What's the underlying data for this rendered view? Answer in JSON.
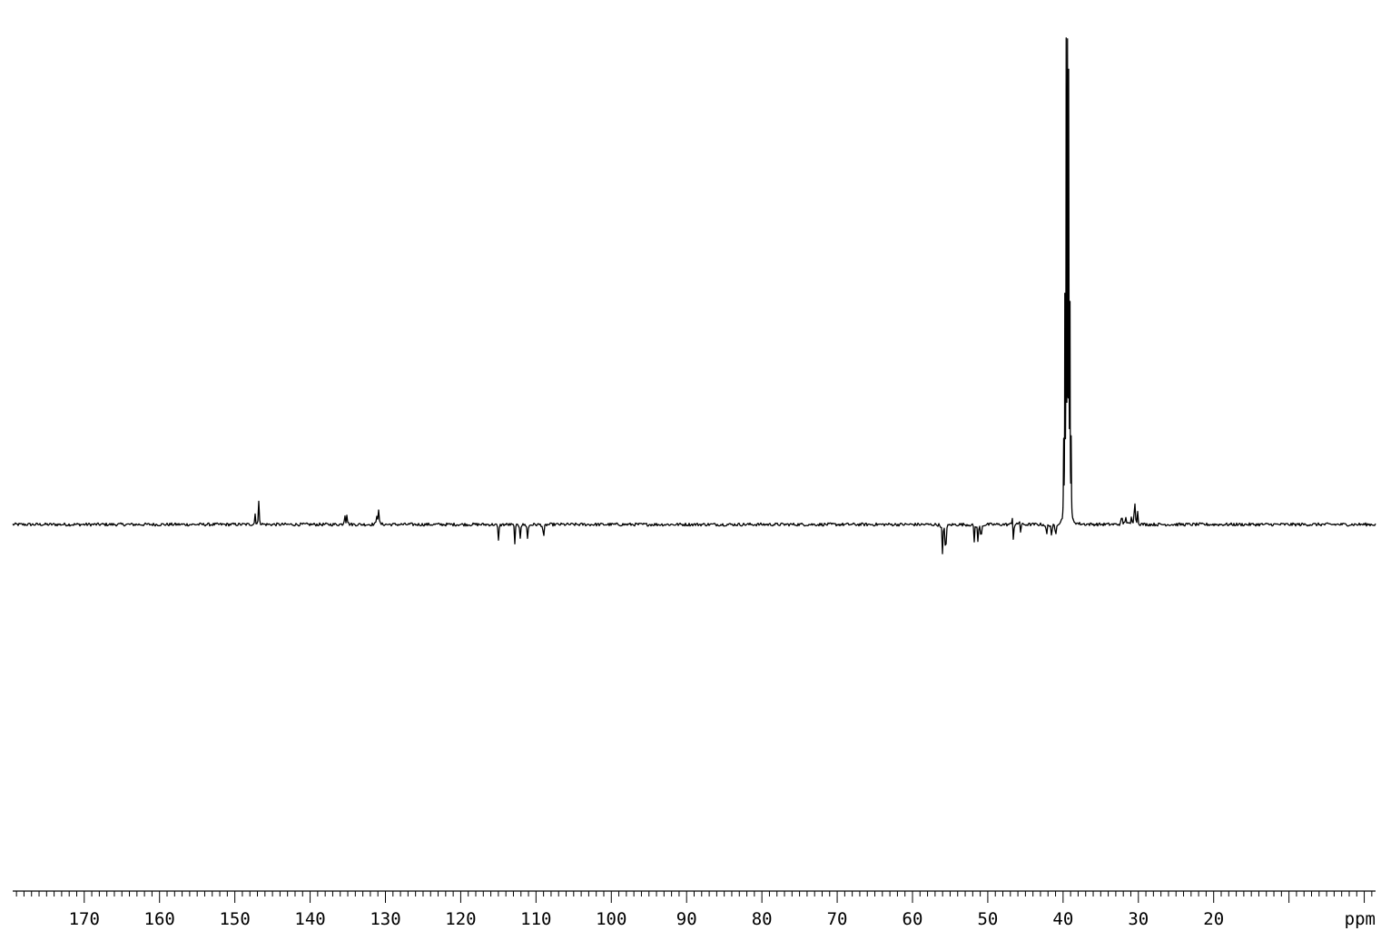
{
  "chart_data": {
    "type": "line",
    "title": "",
    "xlabel": "ppm",
    "ylabel": "",
    "x_reversed": true,
    "xlim": [
      179.5,
      -1.5
    ],
    "ylim": [
      -1.0,
      1.0
    ],
    "grid": false,
    "legend": "none",
    "line_color": "#000000",
    "ticks": {
      "labels": [
        "170",
        "160",
        "150",
        "140",
        "130",
        "120",
        "110",
        "100",
        "90",
        "80",
        "70",
        "60",
        "50",
        "40",
        "30",
        "20"
      ],
      "major_step": 10,
      "minor_step": 1
    },
    "peaks": [
      {
        "ppm": 147.3,
        "height": 0.02,
        "width": 0.05
      },
      {
        "ppm": 146.8,
        "height": 0.05,
        "width": 0.05
      },
      {
        "ppm": 135.4,
        "height": 0.027,
        "width": 0.05
      },
      {
        "ppm": 135.1,
        "height": 0.024,
        "width": 0.05
      },
      {
        "ppm": 131.1,
        "height": 0.03,
        "width": 0.05
      },
      {
        "ppm": 130.9,
        "height": 0.028,
        "width": 0.05
      },
      {
        "ppm": 115.0,
        "height": -0.035,
        "width": 0.05
      },
      {
        "ppm": 112.8,
        "height": -0.038,
        "width": 0.05
      },
      {
        "ppm": 112.1,
        "height": -0.025,
        "width": 0.05
      },
      {
        "ppm": 111.1,
        "height": -0.036,
        "width": 0.05
      },
      {
        "ppm": 109.0,
        "height": -0.042,
        "width": 0.05
      },
      {
        "ppm": 56.0,
        "height": -0.065,
        "width": 0.05
      },
      {
        "ppm": 55.6,
        "height": -0.09,
        "width": 0.05
      },
      {
        "ppm": 51.8,
        "height": -0.032,
        "width": 0.05
      },
      {
        "ppm": 51.3,
        "height": -0.038,
        "width": 0.05
      },
      {
        "ppm": 50.9,
        "height": -0.042,
        "width": 0.05
      },
      {
        "ppm": 46.7,
        "height": 0.028,
        "width": 0.05
      },
      {
        "ppm": 46.6,
        "height": -0.038,
        "width": 0.05
      },
      {
        "ppm": 45.8,
        "height": 0.025,
        "width": 0.05
      },
      {
        "ppm": 45.7,
        "height": -0.035,
        "width": 0.05
      },
      {
        "ppm": 42.2,
        "height": -0.035,
        "width": 0.05
      },
      {
        "ppm": 41.5,
        "height": -0.038,
        "width": 0.05
      },
      {
        "ppm": 41.0,
        "height": -0.036,
        "width": 0.05
      },
      {
        "ppm": 39.93,
        "height": 0.15,
        "width": 0.03
      },
      {
        "ppm": 39.76,
        "height": 0.46,
        "width": 0.03
      },
      {
        "ppm": 39.59,
        "height": 0.89,
        "width": 0.03
      },
      {
        "ppm": 39.42,
        "height": 1.0,
        "width": 0.03
      },
      {
        "ppm": 39.25,
        "height": 0.89,
        "width": 0.03
      },
      {
        "ppm": 39.09,
        "height": 0.46,
        "width": 0.03
      },
      {
        "ppm": 38.92,
        "height": 0.15,
        "width": 0.03
      },
      {
        "ppm": 32.2,
        "height": 0.024,
        "width": 0.05
      },
      {
        "ppm": 31.7,
        "height": 0.024,
        "width": 0.05
      },
      {
        "ppm": 30.9,
        "height": 0.018,
        "width": 0.05
      },
      {
        "ppm": 30.5,
        "height": 0.075,
        "width": 0.05
      },
      {
        "ppm": 30.1,
        "height": 0.024,
        "width": 0.05
      }
    ]
  }
}
